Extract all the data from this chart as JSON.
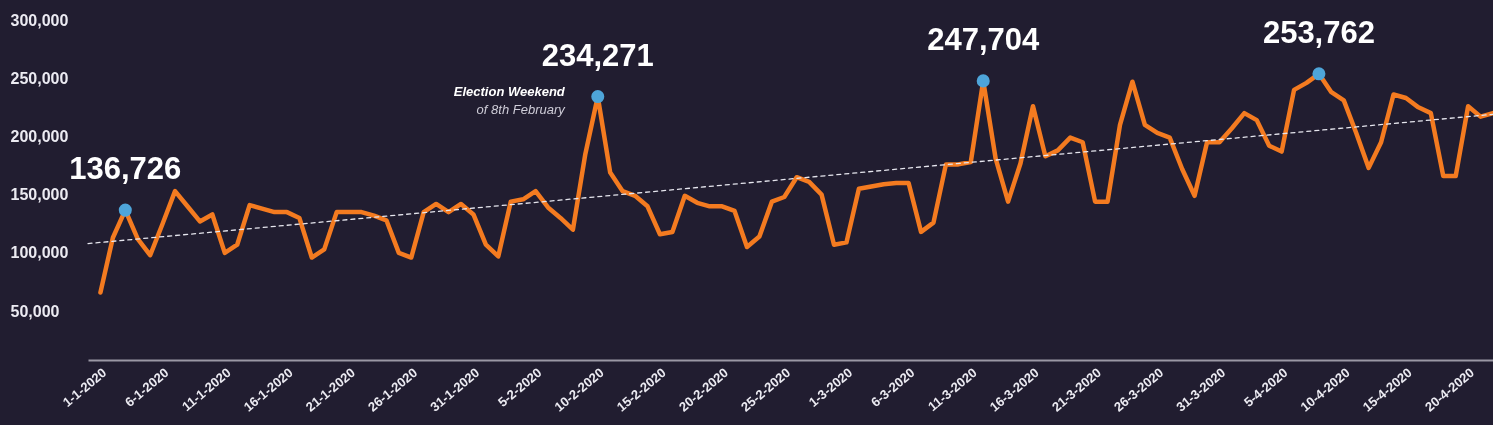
{
  "chart_data": {
    "type": "line",
    "grid": false,
    "x": [
      "2020-01-01",
      "2020-01-02",
      "2020-01-03",
      "2020-01-04",
      "2020-01-05",
      "2020-01-06",
      "2020-01-07",
      "2020-01-08",
      "2020-01-09",
      "2020-01-10",
      "2020-01-11",
      "2020-01-12",
      "2020-01-13",
      "2020-01-14",
      "2020-01-15",
      "2020-01-16",
      "2020-01-17",
      "2020-01-18",
      "2020-01-19",
      "2020-01-20",
      "2020-01-21",
      "2020-01-22",
      "2020-01-23",
      "2020-01-24",
      "2020-01-25",
      "2020-01-26",
      "2020-01-27",
      "2020-01-28",
      "2020-01-29",
      "2020-01-30",
      "2020-01-31",
      "2020-02-01",
      "2020-02-02",
      "2020-02-03",
      "2020-02-04",
      "2020-02-05",
      "2020-02-06",
      "2020-02-07",
      "2020-02-08",
      "2020-02-09",
      "2020-02-10",
      "2020-02-11",
      "2020-02-12",
      "2020-02-13",
      "2020-02-14",
      "2020-02-15",
      "2020-02-16",
      "2020-02-17",
      "2020-02-18",
      "2020-02-19",
      "2020-02-20",
      "2020-02-21",
      "2020-02-22",
      "2020-02-23",
      "2020-02-24",
      "2020-02-25",
      "2020-02-26",
      "2020-02-27",
      "2020-02-28",
      "2020-02-29",
      "2020-03-01",
      "2020-03-02",
      "2020-03-03",
      "2020-03-04",
      "2020-03-05",
      "2020-03-06",
      "2020-03-07",
      "2020-03-08",
      "2020-03-09",
      "2020-03-10",
      "2020-03-11",
      "2020-03-12",
      "2020-03-13",
      "2020-03-14",
      "2020-03-15",
      "2020-03-16",
      "2020-03-17",
      "2020-03-18",
      "2020-03-19",
      "2020-03-20",
      "2020-03-21",
      "2020-03-22",
      "2020-03-23",
      "2020-03-24",
      "2020-03-25",
      "2020-03-26",
      "2020-03-27",
      "2020-03-28",
      "2020-03-29",
      "2020-03-30",
      "2020-03-31",
      "2020-04-01",
      "2020-04-02",
      "2020-04-03",
      "2020-04-04",
      "2020-04-05",
      "2020-04-06",
      "2020-04-07",
      "2020-04-08",
      "2020-04-09",
      "2020-04-10",
      "2020-04-11",
      "2020-04-12",
      "2020-04-13",
      "2020-04-14",
      "2020-04-15",
      "2020-04-16",
      "2020-04-17",
      "2020-04-18",
      "2020-04-19",
      "2020-04-20",
      "2020-04-21",
      "2020-04-22"
    ],
    "xlim": [
      "2019-12-31",
      "2020-04-22"
    ],
    "xticks": [
      {
        "value": "2020-01-01",
        "label": "1-1-2020"
      },
      {
        "value": "2020-01-06",
        "label": "6-1-2020"
      },
      {
        "value": "2020-01-11",
        "label": "11-1-2020"
      },
      {
        "value": "2020-01-16",
        "label": "16-1-2020"
      },
      {
        "value": "2020-01-21",
        "label": "21-1-2020"
      },
      {
        "value": "2020-01-26",
        "label": "26-1-2020"
      },
      {
        "value": "2020-01-31",
        "label": "31-1-2020"
      },
      {
        "value": "2020-02-05",
        "label": "5-2-2020"
      },
      {
        "value": "2020-02-10",
        "label": "10-2-2020"
      },
      {
        "value": "2020-02-15",
        "label": "15-2-2020"
      },
      {
        "value": "2020-02-20",
        "label": "20-2-2020"
      },
      {
        "value": "2020-02-25",
        "label": "25-2-2020"
      },
      {
        "value": "2020-03-01",
        "label": "1-3-2020"
      },
      {
        "value": "2020-03-06",
        "label": "6-3-2020"
      },
      {
        "value": "2020-03-11",
        "label": "11-3-2020"
      },
      {
        "value": "2020-03-16",
        "label": "16-3-2020"
      },
      {
        "value": "2020-03-21",
        "label": "21-3-2020"
      },
      {
        "value": "2020-03-26",
        "label": "26-3-2020"
      },
      {
        "value": "2020-03-31",
        "label": "31-3-2020"
      },
      {
        "value": "2020-04-05",
        "label": "5-4-2020"
      },
      {
        "value": "2020-04-10",
        "label": "10-4-2020"
      },
      {
        "value": "2020-04-15",
        "label": "15-4-2020"
      },
      {
        "value": "2020-04-20",
        "label": "20-4-2020"
      }
    ],
    "ylim": [
      8000,
      300000
    ],
    "yticks": [
      {
        "value": 50000,
        "label": "50,000"
      },
      {
        "value": 100000,
        "label": "100,000"
      },
      {
        "value": 150000,
        "label": "150,000"
      },
      {
        "value": 200000,
        "label": "200,000"
      },
      {
        "value": 250000,
        "label": "250,000"
      },
      {
        "value": 300000,
        "label": "300,000"
      }
    ],
    "series": [
      {
        "type": "line",
        "color": "#f47b20",
        "marker": "none",
        "values": [
          66000,
          113000,
          136726,
          112000,
          98000,
          125000,
          153000,
          140000,
          127000,
          133000,
          100000,
          107000,
          141000,
          138000,
          135000,
          135000,
          130000,
          96000,
          103000,
          135000,
          135000,
          135000,
          132000,
          128000,
          100000,
          96000,
          135000,
          142000,
          135000,
          142000,
          133000,
          107000,
          97000,
          144000,
          146000,
          153000,
          139000,
          130000,
          120000,
          185000,
          234271,
          169000,
          153000,
          149000,
          140000,
          116000,
          118000,
          149000,
          143000,
          140000,
          140000,
          136000,
          105000,
          114000,
          144000,
          148000,
          165000,
          161000,
          150000,
          107000,
          109000,
          155000,
          157000,
          159000,
          160000,
          160000,
          118000,
          126000,
          176000,
          176000,
          178000,
          247704,
          181000,
          144000,
          177000,
          226000,
          183000,
          188000,
          199000,
          195000,
          144000,
          144000,
          210000,
          247000,
          210000,
          203000,
          199000,
          172000,
          149000,
          195000,
          195000,
          207000,
          220000,
          214000,
          192000,
          187000,
          240000,
          246000,
          253762,
          238000,
          231000,
          203000,
          173000,
          195000,
          236000,
          233000,
          225000,
          220000,
          166000,
          166000,
          226000,
          217000,
          220000
        ]
      },
      {
        "type": "line",
        "color": "#e6e6ee",
        "line_style": "dashed",
        "marker": "none",
        "x": [
          "2019-12-31",
          "2020-04-22"
        ],
        "values": [
          108000,
          219000
        ]
      },
      {
        "type": "scatter",
        "color": "#4ea5d9",
        "marker": "circle",
        "x": [
          "2020-01-03",
          "2020-02-10",
          "2020-03-12",
          "2020-04-08"
        ],
        "values": [
          136726,
          234271,
          247704,
          253762
        ],
        "value_labels": [
          "136,726",
          "234,271",
          "247,704",
          "253,762"
        ]
      }
    ],
    "annotations": [
      {
        "text": "Election Weekend",
        "x": "2020-02-10",
        "y": 234271
      },
      {
        "text": "of 8th February",
        "x": "2020-02-10",
        "y": 234271
      }
    ]
  }
}
